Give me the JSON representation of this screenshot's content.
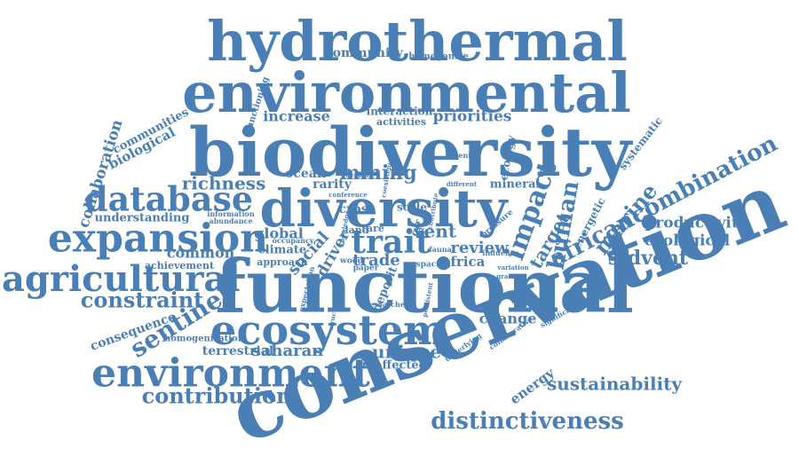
{
  "word_color": "#4a7fb5",
  "background_color": "#ffffff",
  "words": [
    {
      "id": "hydrothermal",
      "text": "hydrothermal"
    },
    {
      "id": "environmental",
      "text": "environmental"
    },
    {
      "id": "biodiversity",
      "text": "biodiversity"
    },
    {
      "id": "diversity",
      "text": "diversity"
    },
    {
      "id": "functional",
      "text": "functional"
    },
    {
      "id": "conservation",
      "text": "conservation"
    },
    {
      "id": "ecosystem",
      "text": "ecosystem"
    },
    {
      "id": "environment",
      "text": "environment"
    },
    {
      "id": "expansion",
      "text": "expansion"
    },
    {
      "id": "database",
      "text": "database"
    },
    {
      "id": "agricultural",
      "text": "agricultural"
    },
    {
      "id": "trait",
      "text": "trait"
    },
    {
      "id": "impact",
      "text": "impact"
    },
    {
      "id": "human",
      "text": "human"
    },
    {
      "id": "africancombination",
      "text": "africancombination"
    },
    {
      "id": "marine",
      "text": "marine"
    },
    {
      "id": "sentinel",
      "text": "sentinel"
    },
    {
      "id": "constraint",
      "text": "constraint"
    },
    {
      "id": "richness",
      "text": "richness"
    },
    {
      "id": "mining",
      "text": "mining"
    },
    {
      "id": "collaboration",
      "text": "collaboration"
    },
    {
      "id": "biological",
      "text": "biological"
    },
    {
      "id": "communities",
      "text": "communities"
    },
    {
      "id": "community",
      "text": "community"
    },
    {
      "id": "homogenise",
      "text": "homogenise"
    },
    {
      "id": "increase",
      "text": "increase"
    },
    {
      "id": "priorities",
      "text": "priorities"
    },
    {
      "id": "interaction",
      "text": "interaction"
    },
    {
      "id": "activities",
      "text": "activities"
    },
    {
      "id": "functioning",
      "text": "functioning"
    },
    {
      "id": "ocean",
      "text": "ocean"
    },
    {
      "id": "rarity",
      "text": "rarity"
    },
    {
      "id": "mineral",
      "text": "mineral"
    },
    {
      "id": "ecology",
      "text": "ecology"
    },
    {
      "id": "systematic",
      "text": "systematic"
    },
    {
      "id": "energetic",
      "text": "energetic"
    },
    {
      "id": "productivity",
      "text": "productivity"
    },
    {
      "id": "ecological",
      "text": "ecological"
    },
    {
      "id": "sfdvent",
      "text": "sfdvent"
    },
    {
      "id": "target",
      "text": "target"
    },
    {
      "id": "understanding",
      "text": "understanding"
    },
    {
      "id": "common",
      "text": "common"
    },
    {
      "id": "achievement",
      "text": "achievement"
    },
    {
      "id": "global",
      "text": "global"
    },
    {
      "id": "social",
      "text": "social"
    },
    {
      "id": "driver",
      "text": "driver"
    },
    {
      "id": "climate",
      "text": "climate"
    },
    {
      "id": "approach",
      "text": "approach"
    },
    {
      "id": "trade",
      "text": "trade"
    },
    {
      "id": "vent",
      "text": "vent"
    },
    {
      "id": "review",
      "text": "review"
    },
    {
      "id": "africa",
      "text": "africa"
    },
    {
      "id": "cross",
      "text": "cross"
    },
    {
      "id": "scale",
      "text": "scale"
    },
    {
      "id": "land",
      "text": "land"
    },
    {
      "id": "rare",
      "text": "rare"
    },
    {
      "id": "off",
      "text": "off"
    },
    {
      "id": "deposit",
      "text": "deposit"
    },
    {
      "id": "consequence",
      "text": "consequence"
    },
    {
      "id": "homogenisation",
      "text": "homogenisation"
    },
    {
      "id": "terrestrial",
      "text": "terrestrial"
    },
    {
      "id": "saharan",
      "text": "saharan"
    },
    {
      "id": "unique",
      "text": "unique"
    },
    {
      "id": "unaffected",
      "text": "unaffected"
    },
    {
      "id": "change",
      "text": "change"
    },
    {
      "id": "contribution",
      "text": "contribution"
    },
    {
      "id": "sustainability",
      "text": "sustainability"
    },
    {
      "id": "energy",
      "text": "energy"
    },
    {
      "id": "distinctiveness",
      "text": "distinctiveness"
    },
    {
      "id": "information",
      "text": "information"
    },
    {
      "id": "abundance",
      "text": "abundance"
    },
    {
      "id": "occupancy",
      "text": "occupancy"
    },
    {
      "id": "wood",
      "text": "wood"
    },
    {
      "id": "paper",
      "text": "paper"
    },
    {
      "id": "researcher",
      "text": "researcher"
    },
    {
      "id": "fauna",
      "text": "fauna"
    },
    {
      "id": "spacing",
      "text": "spacing"
    },
    {
      "id": "pressure",
      "text": "pressure"
    },
    {
      "id": "influence",
      "text": "influence"
    },
    {
      "id": "potential",
      "text": "potential"
    },
    {
      "id": "different",
      "text": "different"
    },
    {
      "id": "dynamic",
      "text": "dynamic"
    },
    {
      "id": "conference",
      "text": "conference"
    },
    {
      "id": "collaborative",
      "text": "collaborative"
    },
    {
      "id": "significant",
      "text": "significant"
    },
    {
      "id": "underlying",
      "text": "underlying"
    },
    {
      "id": "knowledge",
      "text": "knowledge"
    },
    {
      "id": "expectation",
      "text": "expectation"
    },
    {
      "id": "persistent",
      "text": "persistent"
    },
    {
      "id": "variation",
      "text": "variation"
    },
    {
      "id": "gradient",
      "text": "gradient"
    },
    {
      "id": "coexistence",
      "text": "coexistence"
    },
    {
      "id": "contribute",
      "text": "contribute"
    },
    {
      "id": "structure",
      "text": "structure"
    }
  ]
}
